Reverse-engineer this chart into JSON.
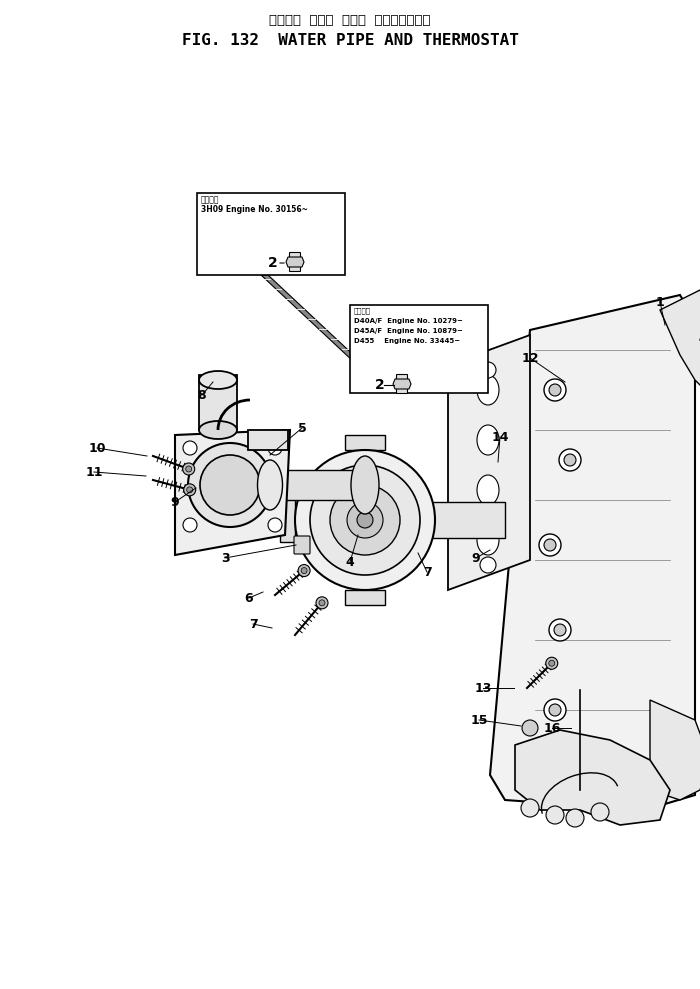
{
  "title_jp": "ウォータ  パイプ  および  サーモスタット",
  "title_en": "FIG. 132  WATER PIPE AND THERMOSTAT",
  "bg_color": "#ffffff",
  "lc": "#000000",
  "box1_line1": "適用機種",
  "box1_line2": "3H09 Engine No. 30156~",
  "box2_line1": "適用機種",
  "box2_line2": "D40A/F  Engine No. 10279~",
  "box2_line3": "D45A/F  Engine No. 10879~",
  "box2_line4": "D455    Engine No. 33445~",
  "fig_width": 700,
  "fig_height": 989
}
